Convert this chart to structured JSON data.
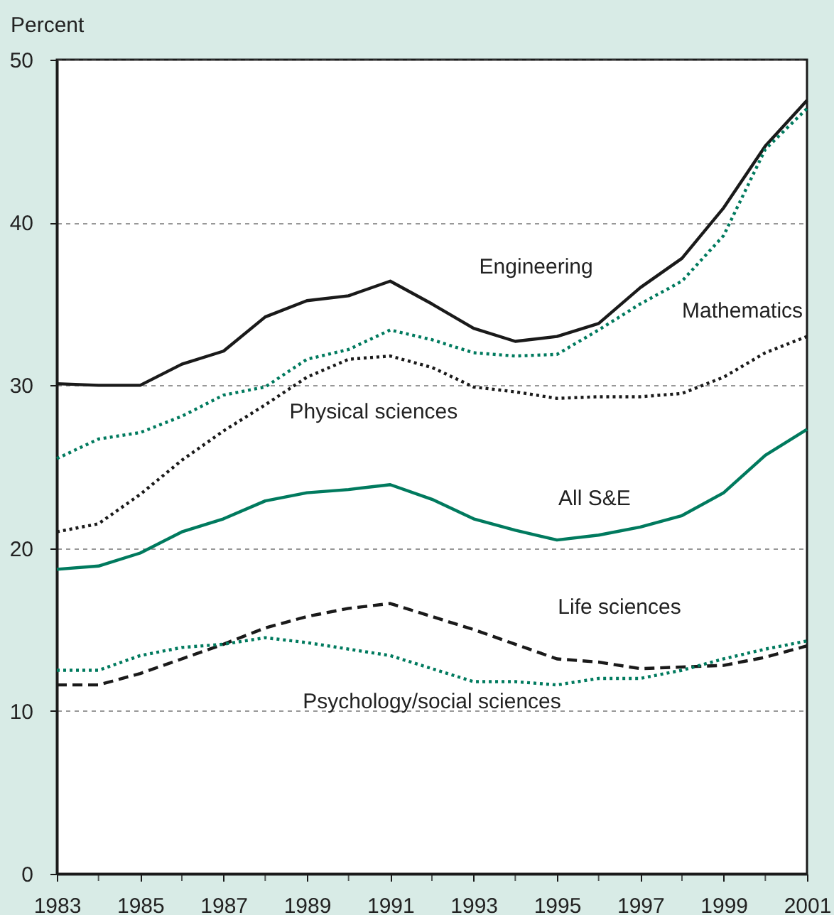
{
  "chart_data": {
    "type": "line",
    "ylabel": "Percent",
    "x": [
      1983,
      1984,
      1985,
      1986,
      1987,
      1988,
      1989,
      1990,
      1991,
      1992,
      1993,
      1994,
      1995,
      1996,
      1997,
      1998,
      1999,
      2000,
      2001
    ],
    "series": [
      {
        "name": "Engineering",
        "color": "#1a1a1a",
        "line_style": "solid",
        "values": [
          30.1,
          30.0,
          30.0,
          31.3,
          32.1,
          34.2,
          35.2,
          35.5,
          36.4,
          35.0,
          33.5,
          32.7,
          33.0,
          33.8,
          36.0,
          37.8,
          40.9,
          44.7,
          47.5
        ]
      },
      {
        "name": "Mathematics",
        "color": "#007a5e",
        "line_style": "dotted",
        "values": [
          25.5,
          26.7,
          27.1,
          28.1,
          29.4,
          29.9,
          31.6,
          32.2,
          33.4,
          32.8,
          32.0,
          31.8,
          31.9,
          33.4,
          35.0,
          36.4,
          39.2,
          44.5,
          47.0
        ]
      },
      {
        "name": "Physical sciences",
        "color": "#1a1a1a",
        "line_style": "dotted",
        "values": [
          21.0,
          21.5,
          23.3,
          25.4,
          27.2,
          28.8,
          30.5,
          31.6,
          31.8,
          31.1,
          29.9,
          29.6,
          29.2,
          29.3,
          29.3,
          29.5,
          30.5,
          32.0,
          33.0
        ]
      },
      {
        "name": "All S&E",
        "color": "#007a5e",
        "line_style": "solid",
        "values": [
          18.7,
          18.9,
          19.7,
          21.0,
          21.8,
          22.9,
          23.4,
          23.6,
          23.9,
          23.0,
          21.8,
          21.1,
          20.5,
          20.8,
          21.3,
          22.0,
          23.4,
          25.7,
          27.3
        ]
      },
      {
        "name": "Life sciences",
        "color": "#1a1a1a",
        "line_style": "dashed",
        "values": [
          11.6,
          11.6,
          12.3,
          13.2,
          14.1,
          15.1,
          15.8,
          16.3,
          16.6,
          15.8,
          15.0,
          14.1,
          13.2,
          13.0,
          12.6,
          12.7,
          12.8,
          13.3,
          14.0
        ]
      },
      {
        "name": "Psychology/social sciences",
        "color": "#007a5e",
        "line_style": "dotted",
        "values": [
          12.5,
          12.5,
          13.4,
          13.9,
          14.1,
          14.5,
          14.2,
          13.8,
          13.4,
          12.6,
          11.8,
          11.8,
          11.6,
          12.0,
          12.0,
          12.5,
          13.2,
          13.8,
          14.3
        ]
      }
    ],
    "xlim": [
      1983,
      2001
    ],
    "xticks": [
      1983,
      {
        "value": 1984,
        "label": null
      },
      1985,
      {
        "value": 1986,
        "label": null
      },
      1987,
      {
        "value": 1988,
        "label": null
      },
      1989,
      {
        "value": 1990,
        "label": null
      },
      1991,
      {
        "value": 1992,
        "label": null
      },
      1993,
      {
        "value": 1994,
        "label": null
      },
      1995,
      {
        "value": 1996,
        "label": null
      },
      1997,
      {
        "value": 1998,
        "label": null
      },
      1999,
      {
        "value": 2000,
        "label": null
      },
      2001
    ],
    "ylim": [
      0,
      50
    ],
    "yticks": [
      0,
      10,
      20,
      30,
      40,
      50
    ],
    "grid": "y",
    "marker": "none"
  }
}
